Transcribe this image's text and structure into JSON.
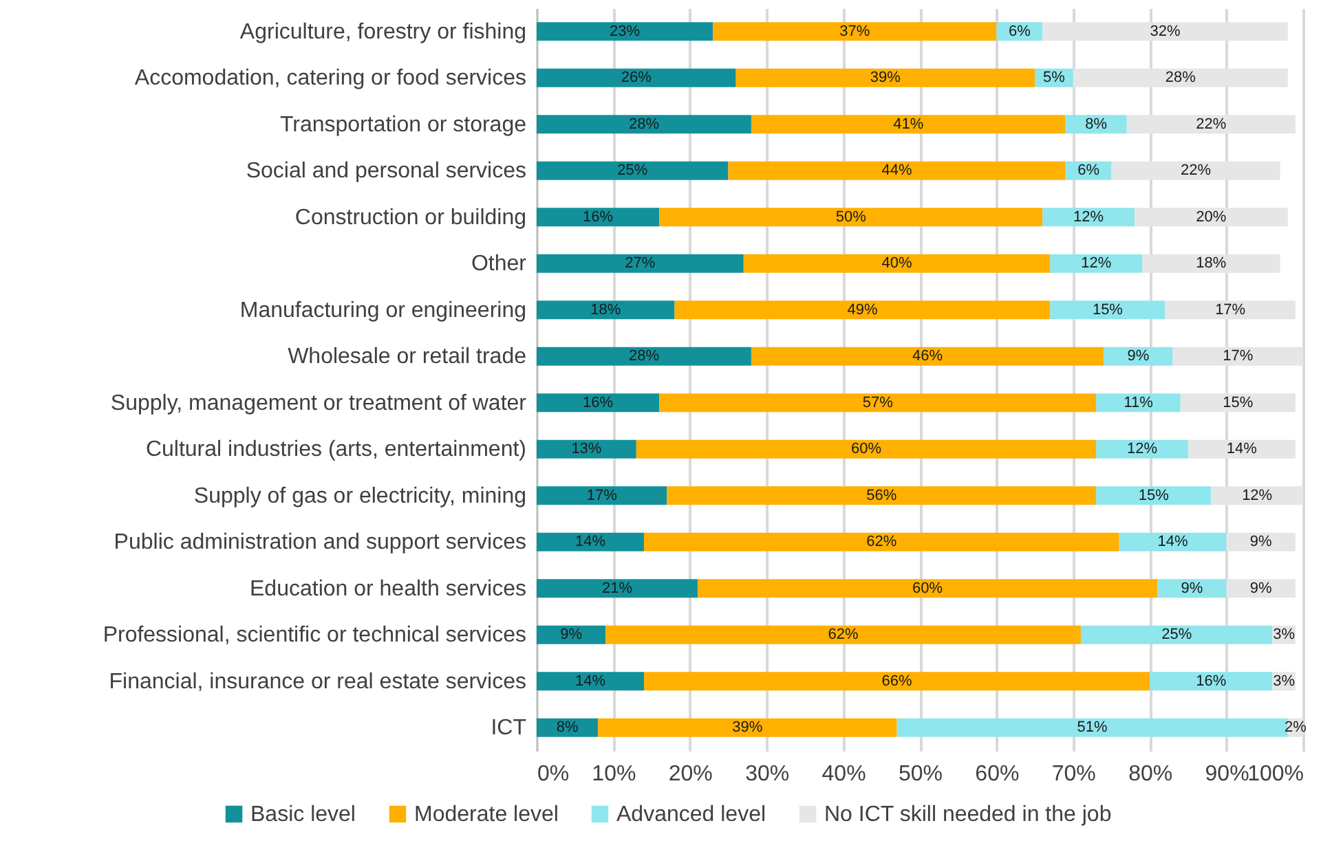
{
  "chart_data": {
    "type": "bar",
    "orientation": "horizontal",
    "stacked": true,
    "categories": [
      "Agriculture, forestry or fishing",
      "Accomodation, catering or food services",
      "Transportation or storage",
      "Social and personal services",
      "Construction or building",
      "Other",
      "Manufacturing or engineering",
      "Wholesale or retail trade",
      "Supply, management or treatment of water",
      "Cultural industries (arts, entertainment)",
      "Supply of gas or electricity, mining",
      "Public administration and support services",
      "Education or health services",
      "Professional, scientific or technical services",
      "Financial, insurance or real estate services",
      "ICT"
    ],
    "series": [
      {
        "name": "Basic level",
        "color": "#12919b",
        "values": [
          23,
          26,
          28,
          25,
          16,
          27,
          18,
          28,
          16,
          13,
          17,
          14,
          21,
          9,
          14,
          8
        ],
        "value_labels": [
          "23%",
          "26%",
          "28%",
          "25%",
          "16%",
          "27%",
          "18%",
          "28%",
          "16%",
          "13%",
          "17%",
          "14%",
          "21%",
          "9%",
          "14%",
          "8%"
        ]
      },
      {
        "name": "Moderate level",
        "color": "#ffb000",
        "values": [
          37,
          39,
          41,
          44,
          50,
          40,
          49,
          46,
          57,
          60,
          56,
          62,
          60,
          62,
          66,
          39
        ],
        "value_labels": [
          "37%",
          "39%",
          "41%",
          "44%",
          "50%",
          "40%",
          "49%",
          "46%",
          "57%",
          "60%",
          "56%",
          "62%",
          "60%",
          "62%",
          "66%",
          "39%"
        ]
      },
      {
        "name": "Advanced level",
        "color": "#8fe6ec",
        "values": [
          6,
          5,
          8,
          6,
          12,
          12,
          15,
          9,
          11,
          12,
          15,
          14,
          9,
          25,
          16,
          51
        ],
        "value_labels": [
          "6%",
          "5%",
          "8%",
          "6%",
          "12%",
          "12%",
          "15%",
          "9%",
          "11%",
          "12%",
          "15%",
          "14%",
          "9%",
          "25%",
          "16%",
          "51%"
        ]
      },
      {
        "name": "No ICT skill needed in the job",
        "color": "#e6e6e6",
        "values": [
          32,
          28,
          22,
          22,
          20,
          18,
          17,
          17,
          15,
          14,
          12,
          9,
          9,
          3,
          3,
          2
        ],
        "value_labels": [
          "32%",
          "28%",
          "22%",
          "22%",
          "20%",
          "18%",
          "17%",
          "17%",
          "15%",
          "14%",
          "12%",
          "9%",
          "9%",
          "3%",
          "3%",
          "2%"
        ]
      }
    ],
    "xlim": [
      0,
      100
    ],
    "xticks": [
      {
        "value": 0,
        "label": "0%"
      },
      {
        "value": 10,
        "label": "10%"
      },
      {
        "value": 20,
        "label": "20%"
      },
      {
        "value": 30,
        "label": "30%"
      },
      {
        "value": 40,
        "label": "40%"
      },
      {
        "value": 50,
        "label": "50%"
      },
      {
        "value": 60,
        "label": "60%"
      },
      {
        "value": 70,
        "label": "70%"
      },
      {
        "value": 80,
        "label": "80%"
      },
      {
        "value": 90,
        "label": "90%"
      },
      {
        "value": 100,
        "label": "100%"
      }
    ],
    "grid": "x",
    "legend": "bottom"
  }
}
